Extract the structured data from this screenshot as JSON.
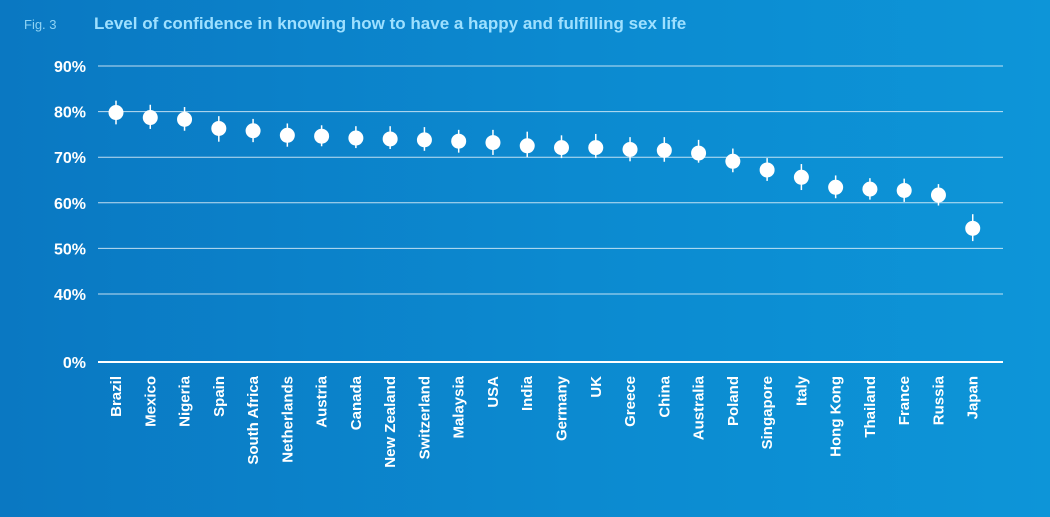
{
  "header": {
    "fig_label": "Fig. 3",
    "title": "Level of confidence in knowing how to have a happy and fulfilling sex life"
  },
  "colors": {
    "background": "#0a78c2",
    "marker": "#ffffff",
    "title": "#9ee0ff"
  },
  "chart_data": {
    "type": "scatter",
    "title": "Level of confidence in knowing how to have a happy and fulfilling sex life",
    "xlabel": "",
    "ylabel": "",
    "y_ticks": [
      "0%",
      "40%",
      "50%",
      "60%",
      "70%",
      "80%",
      "90%"
    ],
    "y_tick_values": [
      0,
      40,
      50,
      60,
      70,
      80,
      90
    ],
    "grid": true,
    "categories": [
      "Brazil",
      "Mexico",
      "Nigeria",
      "Spain",
      "South Africa",
      "Netherlands",
      "Austria",
      "Canada",
      "New Zealand",
      "Switzerland",
      "Malaysia",
      "USA",
      "India",
      "Germany",
      "UK",
      "Greece",
      "China",
      "Australia",
      "Poland",
      "Singapore",
      "Italy",
      "Hong Kong",
      "Thailand",
      "France",
      "Russia",
      "Japan"
    ],
    "values": [
      79.8,
      78.7,
      78.3,
      76.3,
      75.8,
      74.8,
      74.6,
      74.2,
      74.0,
      73.8,
      73.5,
      73.2,
      72.5,
      72.1,
      72.1,
      71.7,
      71.5,
      70.9,
      69.1,
      67.2,
      65.6,
      63.4,
      63.0,
      62.7,
      61.7,
      54.4
    ],
    "error_low": [
      77.2,
      76.2,
      75.8,
      73.4,
      73.3,
      72.3,
      72.4,
      72.0,
      71.8,
      71.4,
      71.0,
      70.5,
      70.0,
      69.8,
      69.8,
      69.1,
      69.0,
      68.8,
      66.7,
      64.8,
      62.8,
      61.0,
      60.7,
      60.2,
      59.4,
      51.6
    ],
    "error_high": [
      82.4,
      81.5,
      81.0,
      79.0,
      78.4,
      77.4,
      77.0,
      76.8,
      76.8,
      76.6,
      76.0,
      76.0,
      75.6,
      74.8,
      75.1,
      74.4,
      74.4,
      73.8,
      71.9,
      69.8,
      68.5,
      66.0,
      65.4,
      65.3,
      64.1,
      57.5
    ]
  }
}
